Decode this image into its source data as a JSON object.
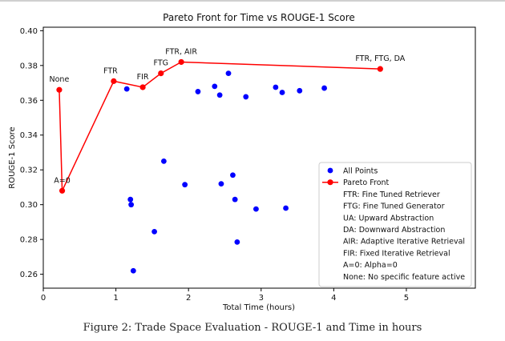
{
  "chart_data": {
    "type": "scatter",
    "title": "Pareto Front for Time vs ROUGE-1 Score",
    "xlabel": "Total Time (hours)",
    "ylabel": "ROUGE-1 Score",
    "xlim": [
      0,
      5.95
    ],
    "ylim": [
      0.252,
      0.402
    ],
    "xticks": [
      0,
      1,
      2,
      3,
      4,
      5
    ],
    "yticks": [
      0.26,
      0.28,
      0.3,
      0.32,
      0.34,
      0.36,
      0.38,
      0.4
    ],
    "xtick_labels": [
      "0",
      "1",
      "2",
      "3",
      "4",
      "5"
    ],
    "ytick_labels": [
      "0.26",
      "0.28",
      "0.30",
      "0.32",
      "0.34",
      "0.36",
      "0.38",
      "0.40"
    ],
    "grid": false,
    "series": [
      {
        "name": "All Points",
        "kind": "scatter",
        "color": "#0000ff",
        "points": [
          {
            "x": 1.15,
            "y": 0.3665
          },
          {
            "x": 1.2,
            "y": 0.303
          },
          {
            "x": 1.21,
            "y": 0.3
          },
          {
            "x": 1.24,
            "y": 0.262
          },
          {
            "x": 1.53,
            "y": 0.2845
          },
          {
            "x": 1.66,
            "y": 0.325
          },
          {
            "x": 1.95,
            "y": 0.3115
          },
          {
            "x": 2.13,
            "y": 0.365
          },
          {
            "x": 2.36,
            "y": 0.368
          },
          {
            "x": 2.43,
            "y": 0.363
          },
          {
            "x": 2.45,
            "y": 0.312
          },
          {
            "x": 2.55,
            "y": 0.3755
          },
          {
            "x": 2.61,
            "y": 0.317
          },
          {
            "x": 2.64,
            "y": 0.303
          },
          {
            "x": 2.67,
            "y": 0.2785
          },
          {
            "x": 2.79,
            "y": 0.362
          },
          {
            "x": 2.93,
            "y": 0.2975
          },
          {
            "x": 3.2,
            "y": 0.3675
          },
          {
            "x": 3.29,
            "y": 0.3645
          },
          {
            "x": 3.34,
            "y": 0.298
          },
          {
            "x": 3.53,
            "y": 0.3655
          },
          {
            "x": 3.87,
            "y": 0.367
          }
        ]
      },
      {
        "name": "Pareto Front",
        "kind": "line",
        "color": "#ff0000",
        "points": [
          {
            "x": 0.22,
            "y": 0.366,
            "label": "None"
          },
          {
            "x": 0.26,
            "y": 0.308,
            "label": "A=0"
          },
          {
            "x": 0.97,
            "y": 0.371,
            "label": "FTR"
          },
          {
            "x": 1.37,
            "y": 0.3675,
            "label": "FIR"
          },
          {
            "x": 1.62,
            "y": 0.3755,
            "label": "FTG"
          },
          {
            "x": 1.9,
            "y": 0.382,
            "label": "FTR, AIR"
          },
          {
            "x": 4.64,
            "y": 0.378,
            "label": "FTR, FTG, DA"
          }
        ]
      }
    ],
    "legend": {
      "position": "lower-right",
      "entries": [
        {
          "label": "All Points",
          "marker": "dot",
          "color": "#0000ff"
        },
        {
          "label": "Pareto Front",
          "marker": "line-dot",
          "color": "#ff0000"
        },
        {
          "label": "FTR: Fine Tuned Retriever",
          "marker": "none"
        },
        {
          "label": "FTG: Fine Tuned Generator",
          "marker": "none"
        },
        {
          "label": "UA: Upward Abstraction",
          "marker": "none"
        },
        {
          "label": "DA: Downward Abstraction",
          "marker": "none"
        },
        {
          "label": "AIR: Adaptive Iterative Retrieval",
          "marker": "none"
        },
        {
          "label": "FIR: Fixed Iterative Retrieval",
          "marker": "none"
        },
        {
          "label": "A=0: Alpha=0",
          "marker": "none"
        },
        {
          "label": "None: No specific feature active",
          "marker": "none"
        }
      ]
    }
  },
  "caption": "Figure 2: Trade Space Evaluation - ROUGE-1 and Time in hours"
}
